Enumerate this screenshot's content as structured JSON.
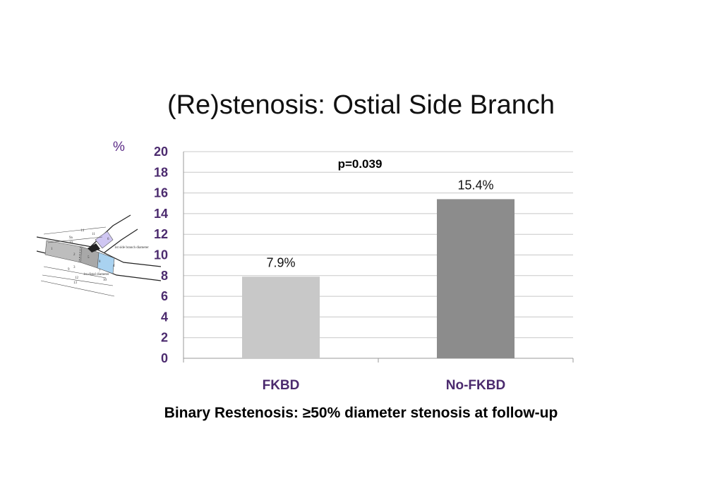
{
  "slide": {
    "title": "(Re)stenosis: Ostial Side Branch",
    "unit_label": "%",
    "footnote": "Binary Restenosis:  ≥50% diameter stenosis at follow-up"
  },
  "chart_data": {
    "type": "bar",
    "categories": [
      "FKBD",
      "No-FKBD"
    ],
    "values": [
      7.9,
      15.4
    ],
    "data_labels": [
      "7.9%",
      "15.4%"
    ],
    "ylim": [
      0,
      20
    ],
    "yticks": [
      0,
      2,
      4,
      6,
      8,
      10,
      12,
      14,
      16,
      18,
      20
    ],
    "grid": true,
    "annotation": "p=0.039",
    "bar_colors": [
      "#c8c8c8",
      "#8c8c8c"
    ],
    "axis_text_color": "#4b2a6e"
  },
  "diagram": {
    "labels": [
      "14",
      "11",
      "9a",
      "10",
      "6",
      "1",
      "5",
      "2",
      "8",
      "3",
      "4",
      "9",
      "12",
      "13",
      "10",
      "7",
      "1st side branch diameter",
      "1st distal diameter"
    ]
  }
}
